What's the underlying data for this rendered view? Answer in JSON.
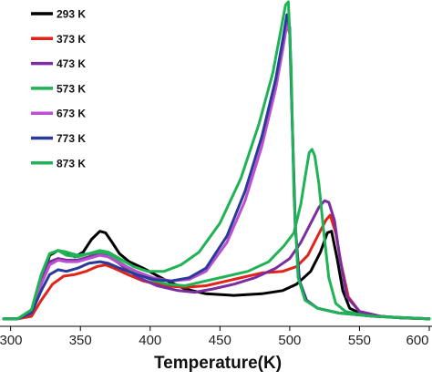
{
  "chart_data": {
    "type": "line",
    "title": "",
    "xlabel": "Temperature(K)",
    "ylabel": "",
    "xlim": [
      295,
      600
    ],
    "ylim": [
      0,
      1.0
    ],
    "xticks": [
      "300",
      "350",
      "400",
      "450",
      "500",
      "550",
      "600"
    ],
    "grid": false,
    "legend_position": "top-left",
    "series": [
      {
        "name": "293 K",
        "color": "#000000",
        "points": [
          [
            295,
            0.012
          ],
          [
            305,
            0.012
          ],
          [
            315,
            0.03
          ],
          [
            322,
            0.13
          ],
          [
            328,
            0.21
          ],
          [
            334,
            0.225
          ],
          [
            340,
            0.22
          ],
          [
            346,
            0.205
          ],
          [
            352,
            0.22
          ],
          [
            358,
            0.26
          ],
          [
            364,
            0.285
          ],
          [
            368,
            0.28
          ],
          [
            372,
            0.255
          ],
          [
            378,
            0.215
          ],
          [
            385,
            0.19
          ],
          [
            395,
            0.17
          ],
          [
            410,
            0.135
          ],
          [
            425,
            0.105
          ],
          [
            440,
            0.09
          ],
          [
            460,
            0.085
          ],
          [
            480,
            0.09
          ],
          [
            495,
            0.1
          ],
          [
            505,
            0.12
          ],
          [
            515,
            0.16
          ],
          [
            522,
            0.22
          ],
          [
            527,
            0.28
          ],
          [
            530,
            0.285
          ],
          [
            534,
            0.2
          ],
          [
            538,
            0.1
          ],
          [
            543,
            0.045
          ],
          [
            550,
            0.03
          ],
          [
            565,
            0.02
          ],
          [
            580,
            0.015
          ],
          [
            600,
            0.012
          ]
        ]
      },
      {
        "name": "373 K",
        "color": "#e0241a",
        "points": [
          [
            295,
            0.012
          ],
          [
            305,
            0.012
          ],
          [
            315,
            0.02
          ],
          [
            322,
            0.07
          ],
          [
            330,
            0.12
          ],
          [
            338,
            0.145
          ],
          [
            346,
            0.15
          ],
          [
            354,
            0.16
          ],
          [
            362,
            0.175
          ],
          [
            368,
            0.18
          ],
          [
            374,
            0.17
          ],
          [
            384,
            0.15
          ],
          [
            395,
            0.13
          ],
          [
            410,
            0.115
          ],
          [
            425,
            0.11
          ],
          [
            440,
            0.115
          ],
          [
            460,
            0.135
          ],
          [
            480,
            0.155
          ],
          [
            495,
            0.16
          ],
          [
            505,
            0.175
          ],
          [
            513,
            0.21
          ],
          [
            520,
            0.27
          ],
          [
            526,
            0.32
          ],
          [
            529,
            0.335
          ],
          [
            533,
            0.28
          ],
          [
            537,
            0.18
          ],
          [
            542,
            0.08
          ],
          [
            550,
            0.035
          ],
          [
            565,
            0.02
          ],
          [
            580,
            0.015
          ],
          [
            600,
            0.012
          ]
        ]
      },
      {
        "name": "473 K",
        "color": "#7b2da0",
        "points": [
          [
            295,
            0.012
          ],
          [
            305,
            0.012
          ],
          [
            315,
            0.03
          ],
          [
            322,
            0.13
          ],
          [
            328,
            0.19
          ],
          [
            334,
            0.2
          ],
          [
            340,
            0.195
          ],
          [
            348,
            0.195
          ],
          [
            356,
            0.205
          ],
          [
            362,
            0.215
          ],
          [
            367,
            0.215
          ],
          [
            373,
            0.2
          ],
          [
            382,
            0.17
          ],
          [
            392,
            0.14
          ],
          [
            405,
            0.115
          ],
          [
            420,
            0.1
          ],
          [
            432,
            0.095
          ],
          [
            445,
            0.105
          ],
          [
            460,
            0.12
          ],
          [
            475,
            0.14
          ],
          [
            490,
            0.17
          ],
          [
            500,
            0.2
          ],
          [
            508,
            0.25
          ],
          [
            515,
            0.31
          ],
          [
            521,
            0.36
          ],
          [
            525,
            0.38
          ],
          [
            528,
            0.375
          ],
          [
            532,
            0.32
          ],
          [
            536,
            0.2
          ],
          [
            541,
            0.08
          ],
          [
            550,
            0.035
          ],
          [
            565,
            0.02
          ],
          [
            580,
            0.015
          ],
          [
            600,
            0.012
          ]
        ]
      },
      {
        "name": "573 K",
        "color": "#1fb356",
        "points": [
          [
            295,
            0.012
          ],
          [
            305,
            0.012
          ],
          [
            315,
            0.04
          ],
          [
            322,
            0.15
          ],
          [
            328,
            0.215
          ],
          [
            334,
            0.225
          ],
          [
            340,
            0.22
          ],
          [
            348,
            0.21
          ],
          [
            356,
            0.215
          ],
          [
            364,
            0.22
          ],
          [
            370,
            0.215
          ],
          [
            378,
            0.19
          ],
          [
            388,
            0.16
          ],
          [
            400,
            0.135
          ],
          [
            412,
            0.12
          ],
          [
            425,
            0.115
          ],
          [
            440,
            0.13
          ],
          [
            455,
            0.145
          ],
          [
            470,
            0.16
          ],
          [
            485,
            0.19
          ],
          [
            496,
            0.24
          ],
          [
            503,
            0.28
          ],
          [
            508,
            0.37
          ],
          [
            512,
            0.48
          ],
          [
            514,
            0.53
          ],
          [
            516,
            0.54
          ],
          [
            518,
            0.52
          ],
          [
            521,
            0.43
          ],
          [
            524,
            0.3
          ],
          [
            528,
            0.14
          ],
          [
            533,
            0.06
          ],
          [
            540,
            0.035
          ],
          [
            555,
            0.022
          ],
          [
            575,
            0.016
          ],
          [
            600,
            0.012
          ]
        ]
      },
      {
        "name": "673 K",
        "color": "#bc4ed0",
        "points": [
          [
            295,
            0.012
          ],
          [
            305,
            0.012
          ],
          [
            315,
            0.03
          ],
          [
            322,
            0.12
          ],
          [
            328,
            0.18
          ],
          [
            334,
            0.195
          ],
          [
            340,
            0.19
          ],
          [
            348,
            0.19
          ],
          [
            356,
            0.2
          ],
          [
            364,
            0.21
          ],
          [
            370,
            0.205
          ],
          [
            378,
            0.185
          ],
          [
            390,
            0.16
          ],
          [
            402,
            0.14
          ],
          [
            415,
            0.13
          ],
          [
            428,
            0.135
          ],
          [
            440,
            0.16
          ],
          [
            455,
            0.25
          ],
          [
            468,
            0.38
          ],
          [
            480,
            0.55
          ],
          [
            490,
            0.73
          ],
          [
            495,
            0.85
          ],
          [
            498,
            0.93
          ],
          [
            500,
            0.9
          ],
          [
            502,
            0.6
          ],
          [
            504,
            0.3
          ],
          [
            507,
            0.13
          ],
          [
            512,
            0.07
          ],
          [
            520,
            0.045
          ],
          [
            535,
            0.03
          ],
          [
            560,
            0.02
          ],
          [
            600,
            0.012
          ]
        ]
      },
      {
        "name": "773 K",
        "color": "#2a3a9a",
        "points": [
          [
            295,
            0.012
          ],
          [
            305,
            0.012
          ],
          [
            315,
            0.03
          ],
          [
            322,
            0.1
          ],
          [
            328,
            0.15
          ],
          [
            334,
            0.165
          ],
          [
            340,
            0.16
          ],
          [
            348,
            0.17
          ],
          [
            356,
            0.185
          ],
          [
            364,
            0.19
          ],
          [
            370,
            0.185
          ],
          [
            378,
            0.17
          ],
          [
            390,
            0.15
          ],
          [
            402,
            0.135
          ],
          [
            415,
            0.13
          ],
          [
            428,
            0.14
          ],
          [
            440,
            0.17
          ],
          [
            455,
            0.27
          ],
          [
            468,
            0.41
          ],
          [
            480,
            0.58
          ],
          [
            490,
            0.76
          ],
          [
            495,
            0.88
          ],
          [
            498,
            0.96
          ],
          [
            500,
            0.92
          ],
          [
            502,
            0.6
          ],
          [
            504,
            0.3
          ],
          [
            507,
            0.13
          ],
          [
            512,
            0.07
          ],
          [
            520,
            0.045
          ],
          [
            535,
            0.03
          ],
          [
            560,
            0.02
          ],
          [
            600,
            0.012
          ]
        ]
      },
      {
        "name": "873 K",
        "color": "#1fb356",
        "points": [
          [
            295,
            0.012
          ],
          [
            305,
            0.012
          ],
          [
            315,
            0.04
          ],
          [
            322,
            0.15
          ],
          [
            328,
            0.215
          ],
          [
            334,
            0.225
          ],
          [
            340,
            0.21
          ],
          [
            348,
            0.205
          ],
          [
            356,
            0.215
          ],
          [
            364,
            0.225
          ],
          [
            370,
            0.22
          ],
          [
            378,
            0.2
          ],
          [
            388,
            0.175
          ],
          [
            398,
            0.16
          ],
          [
            410,
            0.16
          ],
          [
            422,
            0.18
          ],
          [
            435,
            0.22
          ],
          [
            450,
            0.31
          ],
          [
            465,
            0.45
          ],
          [
            478,
            0.62
          ],
          [
            488,
            0.78
          ],
          [
            494,
            0.92
          ],
          [
            497,
            0.99
          ],
          [
            499,
            1.0
          ],
          [
            501,
            0.8
          ],
          [
            503,
            0.4
          ],
          [
            506,
            0.14
          ],
          [
            511,
            0.07
          ],
          [
            520,
            0.045
          ],
          [
            535,
            0.03
          ],
          [
            560,
            0.02
          ],
          [
            600,
            0.012
          ]
        ]
      }
    ]
  }
}
